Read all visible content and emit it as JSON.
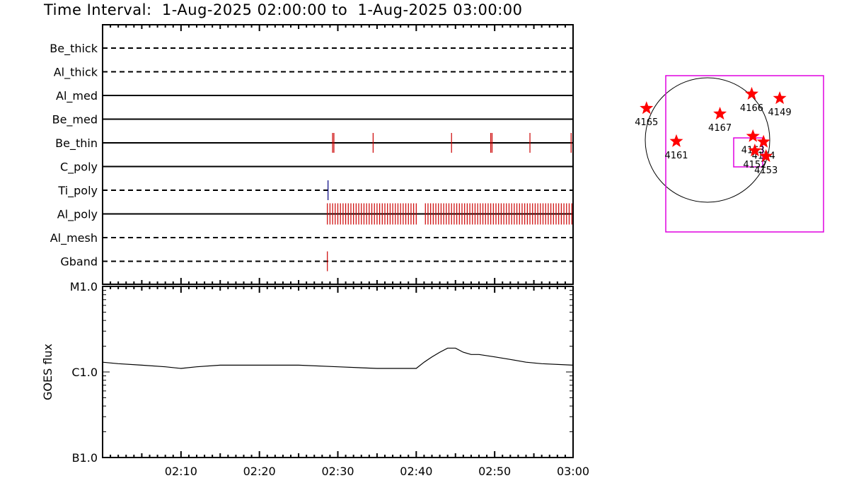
{
  "title": "Time Interval:  1-Aug-2025 02:00:00 to  1-Aug-2025 03:00:00",
  "chart_data": [
    {
      "type": "event_raster",
      "time_range": [
        "02:00",
        "03:00"
      ],
      "x_tick_labels": [
        "02:10",
        "02:20",
        "02:30",
        "02:40",
        "02:50",
        "03:00"
      ],
      "channels": [
        {
          "name": "Be_thick",
          "available": false,
          "events": []
        },
        {
          "name": "Al_thick",
          "available": false,
          "events": []
        },
        {
          "name": "Al_med",
          "available": true,
          "events": []
        },
        {
          "name": "Be_med",
          "available": true,
          "events": []
        },
        {
          "name": "Be_thin",
          "available": true,
          "color": "#cc0000",
          "events": [
            "02:29:20",
            "02:29:30",
            "02:34:30",
            "02:44:30",
            "02:49:30",
            "02:49:40",
            "02:54:30",
            "02:59:45"
          ]
        },
        {
          "name": "C_poly",
          "available": true,
          "events": []
        },
        {
          "name": "Ti_poly",
          "available": false,
          "color": "#000080",
          "events": [
            "02:28:45"
          ]
        },
        {
          "name": "Al_poly",
          "available": true,
          "color": "#cc0000",
          "event_blocks": [
            [
              "02:28:40",
              "02:40:10"
            ],
            [
              "02:41:10",
              "03:00:00"
            ]
          ],
          "event_spacing_s": 20
        },
        {
          "name": "Al_mesh",
          "available": false,
          "events": []
        },
        {
          "name": "Gband",
          "available": false,
          "color": "#cc0000",
          "events": [
            "02:28:40"
          ]
        }
      ]
    },
    {
      "type": "line",
      "ylabel": "GOES flux",
      "yscale": "log",
      "y_tick_labels": [
        "M1.0",
        "C1.0",
        "B1.0"
      ],
      "ylim": [
        "B1.0",
        "M1.0"
      ],
      "x": [
        "02:00",
        "02:02",
        "02:05",
        "02:08",
        "02:10",
        "02:12",
        "02:15",
        "02:20",
        "02:25",
        "02:30",
        "02:35",
        "02:38",
        "02:40",
        "02:41",
        "02:42",
        "02:43",
        "02:44",
        "02:45",
        "02:46",
        "02:47",
        "02:48",
        "02:50",
        "02:52",
        "02:54",
        "02:56",
        "03:00"
      ],
      "values_class": [
        "C1.3",
        "C1.25",
        "C1.2",
        "C1.15",
        "C1.1",
        "C1.15",
        "C1.2",
        "C1.2",
        "C1.2",
        "C1.15",
        "C1.1",
        "C1.1",
        "C1.1",
        "C1.3",
        "C1.5",
        "C1.7",
        "C1.9",
        "C1.9",
        "C1.7",
        "C1.6",
        "C1.6",
        "C1.5",
        "C1.4",
        "C1.3",
        "C1.25",
        "C1.2"
      ]
    },
    {
      "type": "scatter_map",
      "regions": [
        {
          "label": "4165",
          "x": -0.98,
          "y": 0.51
        },
        {
          "label": "4161",
          "x": -0.5,
          "y": -0.02
        },
        {
          "label": "4167",
          "x": 0.2,
          "y": 0.42
        },
        {
          "label": "4166",
          "x": 0.71,
          "y": 0.74
        },
        {
          "label": "4149",
          "x": 1.16,
          "y": 0.67
        },
        {
          "label": "4163",
          "x": 0.73,
          "y": 0.06
        },
        {
          "label": "4154",
          "x": 0.9,
          "y": -0.03
        },
        {
          "label": "4152",
          "x": 0.76,
          "y": -0.17
        },
        {
          "label": "4153",
          "x": 0.94,
          "y": -0.26
        }
      ]
    }
  ],
  "colors": {
    "event_red": "#cc0000",
    "event_blue": "#000080",
    "fov_magenta": "#e000e0",
    "star_red": "#ff0000"
  }
}
